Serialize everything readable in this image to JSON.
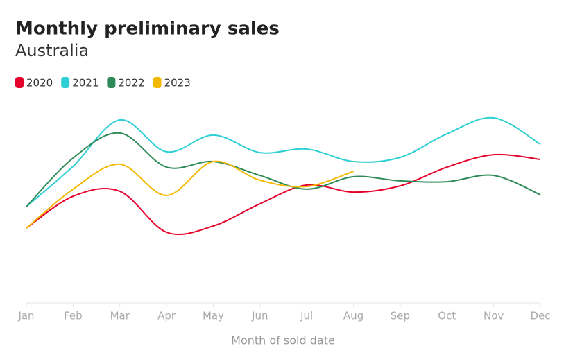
{
  "chart_data": {
    "type": "line",
    "title": "Monthly preliminary sales",
    "subtitle": "Australia",
    "x_label": "Month of sold date",
    "categories": [
      "Jan",
      "Feb",
      "Mar",
      "Apr",
      "May",
      "Jun",
      "Jul",
      "Aug",
      "Sep",
      "Oct",
      "Nov",
      "Dec"
    ],
    "ylim": [
      0,
      100
    ],
    "series": [
      {
        "name": "2020",
        "color": "#e4002b",
        "values": [
          36,
          51.3,
          53.7,
          34,
          37,
          47.7,
          56.7,
          53.3,
          56.3,
          65.3,
          71.3,
          69
        ]
      },
      {
        "name": "2021",
        "color": "#2ecfd4",
        "values": [
          46.3,
          65.7,
          88,
          72.7,
          80.7,
          72.3,
          74,
          68,
          70,
          81.3,
          89,
          76.3
        ]
      },
      {
        "name": "2022",
        "color": "#2e8b57",
        "values": [
          46.3,
          69.7,
          81.7,
          65.3,
          68,
          61.3,
          54.7,
          60.7,
          58.7,
          58.3,
          61.3,
          52
        ]
      },
      {
        "name": "2023",
        "color": "#f5b800",
        "values": [
          36,
          54.7,
          66.7,
          51.7,
          68,
          59,
          56,
          63.3,
          null,
          null,
          null,
          null
        ]
      }
    ]
  }
}
